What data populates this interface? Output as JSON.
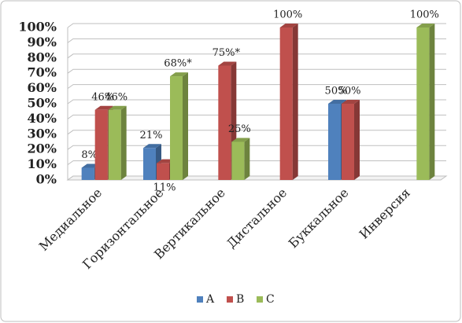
{
  "chart_data": {
    "type": "bar3d",
    "categories": [
      "Медиальное",
      "Горизонтальное",
      "Вертикальное",
      "Дистальное",
      "Буккальное",
      "Инверсия"
    ],
    "series": [
      {
        "name": "A",
        "color": "#4f81bd",
        "values": [
          8,
          21,
          null,
          null,
          50,
          null
        ],
        "value_labels": [
          "8%",
          "21%",
          null,
          null,
          "50%",
          null
        ]
      },
      {
        "name": "B",
        "color": "#c0504d",
        "values": [
          46,
          11,
          75,
          100,
          50,
          null
        ],
        "value_labels": [
          "46%",
          "11%",
          "75%*",
          "100%",
          "50%",
          null
        ]
      },
      {
        "name": "C",
        "color": "#9bbb59",
        "values": [
          46,
          68,
          25,
          null,
          null,
          100
        ],
        "value_labels": [
          "46%",
          "68%*",
          "25%",
          null,
          null,
          "100%"
        ]
      }
    ],
    "ylim": [
      0,
      100
    ],
    "yticks": [
      {
        "value": 0,
        "label": "0%"
      },
      {
        "value": 10,
        "label": "10%"
      },
      {
        "value": 20,
        "label": "20%"
      },
      {
        "value": 30,
        "label": "30%"
      },
      {
        "value": 40,
        "label": "40%"
      },
      {
        "value": 50,
        "label": "50%"
      },
      {
        "value": 60,
        "label": "60%"
      },
      {
        "value": 70,
        "label": "70%"
      },
      {
        "value": 80,
        "label": "80%"
      },
      {
        "value": 90,
        "label": "90%"
      },
      {
        "value": 100,
        "label": "100%"
      }
    ],
    "grid": true,
    "legend": "bottom"
  }
}
